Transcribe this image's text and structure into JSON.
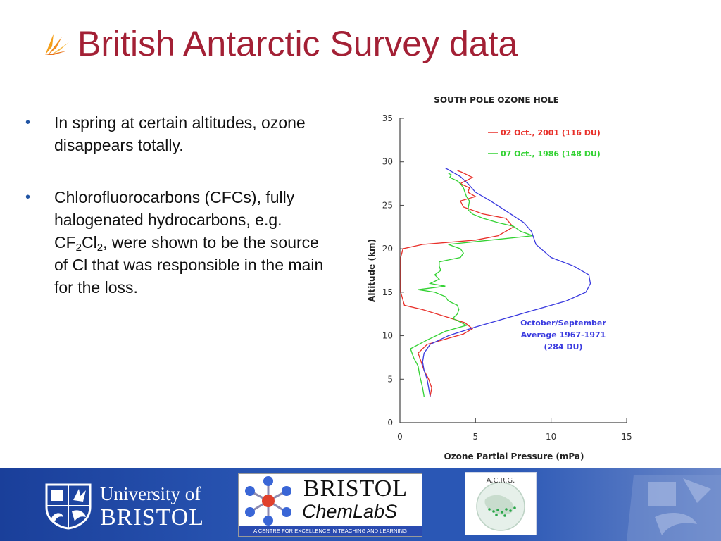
{
  "title": "British Antarctic Survey data",
  "bullets": [
    {
      "text": "In spring at certain altitudes, ozone disappears totally."
    },
    {
      "pre": "Chlorofluorocarbons (CFCs), fully halogenated hydrocarbons, e.g. CF",
      "sub1": "2",
      "mid": "Cl",
      "sub2": "2",
      "post": ", were shown to be the source of Cl that was responsible in the main for the loss."
    }
  ],
  "bullet_glyph": "•",
  "chart_data": {
    "type": "line",
    "title": "SOUTH POLE OZONE HOLE",
    "xlabel": "Ozone Partial Pressure (mPa)",
    "ylabel": "Altitude (km)",
    "xlim": [
      0,
      15
    ],
    "ylim": [
      0,
      35
    ],
    "xticks": [
      0,
      5,
      10,
      15
    ],
    "yticks": [
      0,
      5,
      10,
      15,
      20,
      25,
      30,
      35
    ],
    "legend_position": "top-right",
    "annotation": [
      "October/September",
      "Average 1967-1971",
      "(284 DU)"
    ],
    "series": [
      {
        "name": "02 Oct., 2001  (116 DU)",
        "color": "#e8302a",
        "points": [
          [
            2.0,
            3.0
          ],
          [
            2.1,
            4.0
          ],
          [
            1.9,
            5.0
          ],
          [
            1.6,
            6.0
          ],
          [
            1.4,
            7.0
          ],
          [
            1.2,
            8.0
          ],
          [
            1.8,
            9.0
          ],
          [
            2.8,
            9.5
          ],
          [
            4.2,
            10.2
          ],
          [
            4.8,
            10.8
          ],
          [
            4.3,
            11.5
          ],
          [
            3.0,
            12.2
          ],
          [
            1.5,
            13.0
          ],
          [
            0.3,
            13.5
          ],
          [
            0.05,
            15.0
          ],
          [
            0.05,
            17.0
          ],
          [
            0.05,
            19.0
          ],
          [
            0.2,
            20.0
          ],
          [
            1.5,
            20.5
          ],
          [
            5.0,
            21.0
          ],
          [
            6.5,
            21.5
          ],
          [
            7.5,
            22.5
          ],
          [
            7.0,
            23.5
          ],
          [
            5.5,
            24.0
          ],
          [
            4.2,
            24.8
          ],
          [
            4.0,
            25.5
          ],
          [
            5.0,
            26.0
          ],
          [
            4.5,
            26.5
          ],
          [
            4.6,
            27.0
          ],
          [
            4.0,
            27.5
          ],
          [
            4.8,
            28.2
          ],
          [
            4.1,
            28.8
          ],
          [
            3.8,
            29.0
          ]
        ]
      },
      {
        "name": "07 Oct., 1986  (148 DU)",
        "color": "#33d233",
        "points": [
          [
            1.6,
            3.0
          ],
          [
            1.5,
            4.0
          ],
          [
            1.3,
            5.5
          ],
          [
            1.2,
            6.5
          ],
          [
            0.9,
            7.5
          ],
          [
            0.7,
            8.5
          ],
          [
            1.8,
            9.5
          ],
          [
            3.0,
            10.5
          ],
          [
            4.4,
            11.2
          ],
          [
            3.5,
            12.0
          ],
          [
            3.8,
            12.5
          ],
          [
            3.9,
            13.0
          ],
          [
            3.8,
            13.5
          ],
          [
            3.2,
            14.0
          ],
          [
            3.0,
            14.5
          ],
          [
            2.3,
            15.0
          ],
          [
            1.2,
            15.3
          ],
          [
            3.0,
            15.7
          ],
          [
            2.0,
            16.0
          ],
          [
            2.6,
            16.5
          ],
          [
            2.3,
            17.0
          ],
          [
            2.7,
            17.5
          ],
          [
            2.6,
            18.0
          ],
          [
            2.6,
            18.5
          ],
          [
            4.0,
            19.0
          ],
          [
            4.2,
            19.5
          ],
          [
            4.0,
            20.0
          ],
          [
            3.2,
            20.5
          ],
          [
            6.0,
            21.0
          ],
          [
            8.8,
            21.5
          ],
          [
            8.0,
            22.0
          ],
          [
            7.5,
            22.6
          ],
          [
            6.5,
            23.0
          ],
          [
            5.5,
            23.5
          ],
          [
            4.8,
            24.0
          ],
          [
            4.5,
            24.5
          ],
          [
            4.6,
            25.5
          ],
          [
            4.4,
            26.0
          ],
          [
            4.3,
            26.5
          ],
          [
            4.2,
            27.0
          ],
          [
            4.0,
            27.5
          ],
          [
            3.8,
            27.8
          ],
          [
            3.3,
            28.2
          ],
          [
            3.4,
            28.5
          ],
          [
            3.2,
            28.7
          ]
        ]
      },
      {
        "name": "October/September Average 1967-1971 (284 DU)",
        "color": "#3a3adf",
        "points": [
          [
            2.0,
            3.0
          ],
          [
            1.9,
            4.0
          ],
          [
            1.8,
            5.0
          ],
          [
            1.6,
            6.0
          ],
          [
            1.5,
            7.0
          ],
          [
            1.6,
            8.0
          ],
          [
            2.0,
            9.0
          ],
          [
            3.2,
            10.0
          ],
          [
            5.0,
            11.0
          ],
          [
            7.0,
            12.0
          ],
          [
            9.0,
            13.0
          ],
          [
            11.0,
            14.0
          ],
          [
            12.3,
            15.0
          ],
          [
            12.6,
            16.0
          ],
          [
            12.5,
            17.0
          ],
          [
            11.5,
            18.0
          ],
          [
            10.0,
            19.0
          ],
          [
            9.0,
            20.5
          ],
          [
            8.7,
            22.0
          ],
          [
            8.2,
            23.0
          ],
          [
            7.5,
            23.8
          ],
          [
            6.8,
            24.6
          ],
          [
            6.0,
            25.5
          ],
          [
            5.0,
            26.5
          ],
          [
            4.5,
            27.5
          ],
          [
            4.0,
            28.3
          ],
          [
            3.4,
            28.9
          ],
          [
            3.0,
            29.3
          ]
        ]
      }
    ]
  },
  "footer": {
    "uob_line1": "University of",
    "uob_line2": "BRISTOL",
    "chem_line1": "BRISTOL",
    "chem_line2": "ChemLabS",
    "chem_tagline": "A CENTRE FOR EXCELLENCE IN TEACHING AND LEARNING",
    "acrg_text": "A.C.R.G."
  }
}
